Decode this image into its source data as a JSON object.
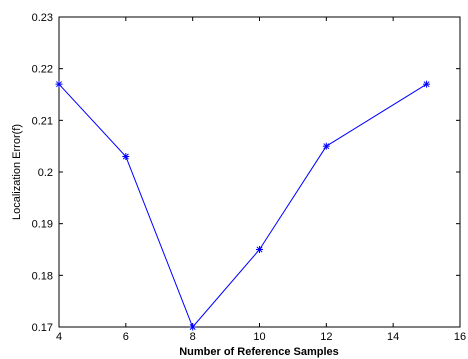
{
  "chart_data": {
    "type": "line",
    "title": "",
    "xlabel": "Number of Reference Samples",
    "ylabel": "Localization Error(f)",
    "xlim": [
      4,
      16
    ],
    "ylim": [
      0.17,
      0.23
    ],
    "xticks": [
      4,
      6,
      8,
      10,
      12,
      14,
      16
    ],
    "yticks": [
      0.17,
      0.18,
      0.19,
      0.2,
      0.21,
      0.22,
      0.23
    ],
    "xtick_labels": [
      "4",
      "6",
      "8",
      "10",
      "12",
      "14",
      "16"
    ],
    "ytick_labels": [
      "0.17",
      "0.18",
      "0.19",
      "0.2",
      "0.21",
      "0.22",
      "0.23"
    ],
    "grid": false,
    "series": [
      {
        "x": [
          4,
          6,
          8,
          10,
          12,
          15
        ],
        "y": [
          0.217,
          0.203,
          0.17,
          0.185,
          0.205,
          0.217
        ],
        "marker": "asterisk",
        "color": "#0000ff"
      }
    ]
  }
}
